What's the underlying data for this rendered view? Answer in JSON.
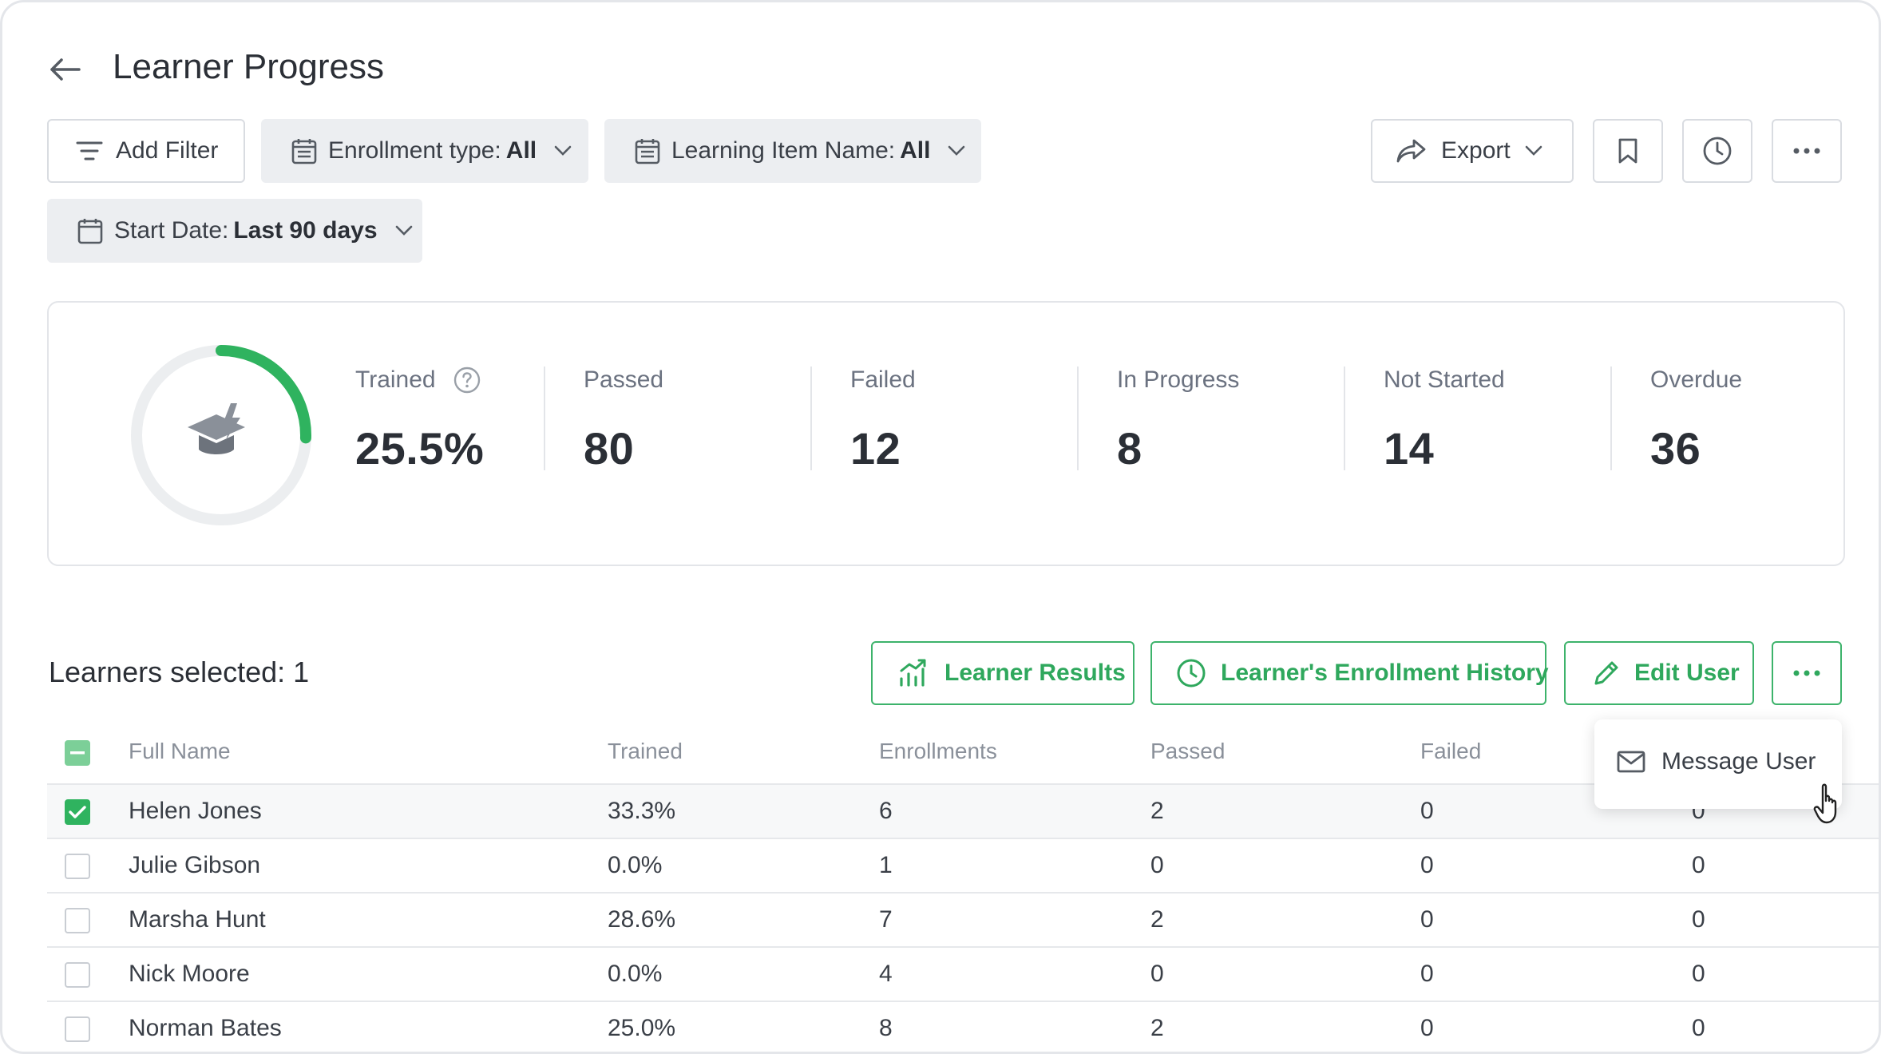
{
  "header": {
    "title": "Learner Progress"
  },
  "filters": {
    "add_filter": "Add Filter",
    "enrollment_type_label": "Enrollment type:",
    "enrollment_type_value": "All",
    "learning_item_label": "Learning Item Name:",
    "learning_item_value": "All",
    "start_date_label": "Start Date:",
    "start_date_value": "Last 90 days"
  },
  "toolbar": {
    "export": "Export"
  },
  "stats": {
    "trained_label": "Trained",
    "trained_value": "25.5%",
    "trained_fraction": 0.255,
    "passed_label": "Passed",
    "passed_value": "80",
    "failed_label": "Failed",
    "failed_value": "12",
    "in_progress_label": "In Progress",
    "in_progress_value": "8",
    "not_started_label": "Not Started",
    "not_started_value": "14",
    "overdue_label": "Overdue",
    "overdue_value": "36"
  },
  "actions": {
    "selected_text": "Learners selected: 1",
    "learner_results": "Learner Results",
    "enrollment_history": "Learner's Enrollment History",
    "edit_user": "Edit User"
  },
  "dropdown": {
    "message_user": "Message User"
  },
  "table": {
    "columns": [
      "Full Name",
      "Trained",
      "Enrollments",
      "Passed",
      "Failed"
    ],
    "rows": [
      {
        "name": "Helen Jones",
        "trained": "33.3%",
        "enrollments": "6",
        "passed": "2",
        "failed": "0",
        "last": "0",
        "checked": true
      },
      {
        "name": "Julie Gibson",
        "trained": "0.0%",
        "enrollments": "1",
        "passed": "0",
        "failed": "0",
        "last": "0",
        "checked": false
      },
      {
        "name": "Marsha Hunt",
        "trained": "28.6%",
        "enrollments": "7",
        "passed": "2",
        "failed": "0",
        "last": "0",
        "checked": false
      },
      {
        "name": "Nick Moore",
        "trained": "0.0%",
        "enrollments": "4",
        "passed": "0",
        "failed": "0",
        "last": "0",
        "checked": false
      },
      {
        "name": "Norman Bates",
        "trained": "25.0%",
        "enrollments": "8",
        "passed": "2",
        "failed": "0",
        "last": "0",
        "checked": false
      }
    ]
  },
  "colors": {
    "accent_green": "#2fb35f",
    "ring_track": "#eceef0"
  }
}
